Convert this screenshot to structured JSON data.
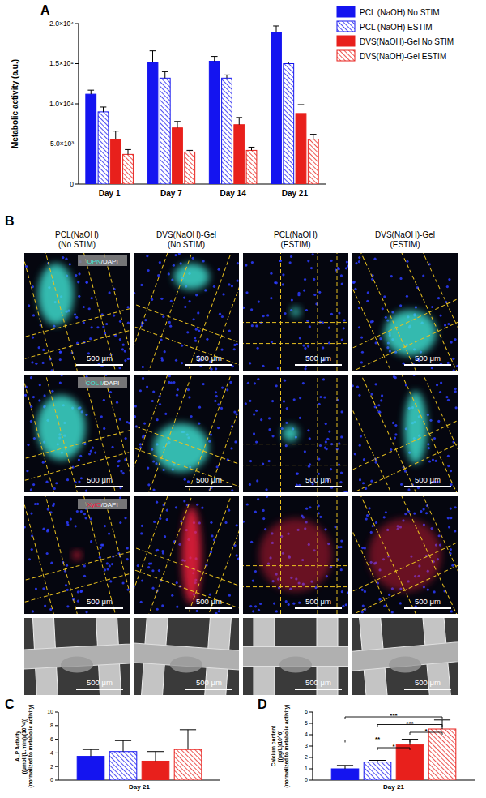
{
  "chart_data": [
    {
      "type": "bar",
      "title": "A",
      "y_label": "Metabolic activity (a.u.)",
      "categories": [
        "Day 1",
        "Day 7",
        "Day 14",
        "Day 21"
      ],
      "series": [
        {
          "name": "PCL (NaOH) No STIM",
          "color": "#1414f0",
          "line_style": "solid",
          "values": [
            11200,
            15200,
            15300,
            18900
          ],
          "errors": [
            500,
            1400,
            600,
            800
          ]
        },
        {
          "name": "PCL (NaOH) ESTIM",
          "color": "#1414f0",
          "line_style": "hatched",
          "values": [
            9000,
            13200,
            13200,
            15000
          ],
          "errors": [
            600,
            800,
            400,
            200
          ]
        },
        {
          "name": "DVS(NaOH)-Gel No STIM",
          "color": "#e8201c",
          "line_style": "solid",
          "values": [
            5600,
            7000,
            7400,
            8800
          ],
          "errors": [
            1000,
            800,
            900,
            1100
          ]
        },
        {
          "name": "DVS(NaOH)-Gel ESTIM",
          "color": "#e8201c",
          "line_style": "hatched",
          "values": [
            3700,
            4000,
            4200,
            5600
          ],
          "errors": [
            600,
            200,
            400,
            600
          ]
        }
      ],
      "ylim": [
        0,
        20000
      ],
      "yticks": [
        0,
        {
          "value": 5000,
          "label": "5.0×10³"
        },
        {
          "value": 10000,
          "label": "1.0×10⁴"
        },
        {
          "value": 15000,
          "label": "1.5×10⁴"
        },
        {
          "value": 20000,
          "label": "2.0×10⁴"
        }
      ],
      "legend": "top-right"
    },
    {
      "type": "bar",
      "title": "C",
      "y_label": "ALP Activity\n((μmol/(L.min))/(10^4))\n(normalized to metabolic activity)",
      "categories": [
        "Day 21"
      ],
      "series": [
        {
          "color": "#1414f0",
          "line_style": "solid",
          "values": [
            3.5
          ],
          "errors": [
            1.0
          ]
        },
        {
          "color": "#1414f0",
          "line_style": "hatched",
          "values": [
            4.2
          ],
          "errors": [
            1.6
          ]
        },
        {
          "color": "#e8201c",
          "line_style": "solid",
          "values": [
            2.8
          ],
          "errors": [
            1.4
          ]
        },
        {
          "color": "#e8201c",
          "line_style": "hatched",
          "values": [
            4.5
          ],
          "errors": [
            2.9
          ]
        }
      ],
      "ylim": [
        0,
        10
      ],
      "yticks": [
        0,
        2,
        4,
        6,
        8,
        10
      ]
    },
    {
      "type": "bar",
      "title": "D",
      "y_label": "Calcium content\n((μg/L)/10^6)\n(normalized to metabolic activity)",
      "categories": [
        "Day 21"
      ],
      "series": [
        {
          "color": "#1414f0",
          "line_style": "solid",
          "values": [
            1.0
          ],
          "errors": [
            0.3
          ]
        },
        {
          "color": "#1414f0",
          "line_style": "hatched",
          "values": [
            1.6
          ],
          "errors": [
            0.15
          ]
        },
        {
          "color": "#e8201c",
          "line_style": "solid",
          "values": [
            3.1
          ],
          "errors": [
            0.5
          ]
        },
        {
          "color": "#e8201c",
          "line_style": "hatched",
          "values": [
            4.5
          ],
          "errors": [
            0.8
          ]
        }
      ],
      "ylim": [
        0,
        6
      ],
      "yticks": [
        0,
        1,
        2,
        3,
        4,
        5,
        6
      ],
      "annotations": [
        {
          "text": "***",
          "from": 0,
          "to": 3
        },
        {
          "text": "***",
          "from": 1,
          "to": 3
        },
        {
          "text": "*",
          "from": 2,
          "to": 3
        },
        {
          "text": "**",
          "from": 0,
          "to": 2
        },
        {
          "text": "*",
          "from": 1,
          "to": 2
        }
      ]
    }
  ],
  "figure_b": {
    "title": "B",
    "columns": [
      [
        "PCL(NaOH)",
        "(No STIM)"
      ],
      [
        "DVS(NaOH)-Gel",
        "(No STIM)"
      ],
      [
        "PCL(NaOH)",
        "(ESTIM)"
      ],
      [
        "DVS(NaOH)-Gel",
        "(ESTIM)"
      ]
    ],
    "rows": [
      {
        "type": "fluorescence",
        "label": "OPN/DAPI",
        "color": "#40e8d8"
      },
      {
        "type": "fluorescence",
        "label": "COL I/DAPI",
        "color": "#40e8d8"
      },
      {
        "type": "fluorescence",
        "label": "XylO/DAPI",
        "color": "#ff2040"
      },
      {
        "type": "sem"
      }
    ],
    "scale_bar": "500 μm"
  }
}
